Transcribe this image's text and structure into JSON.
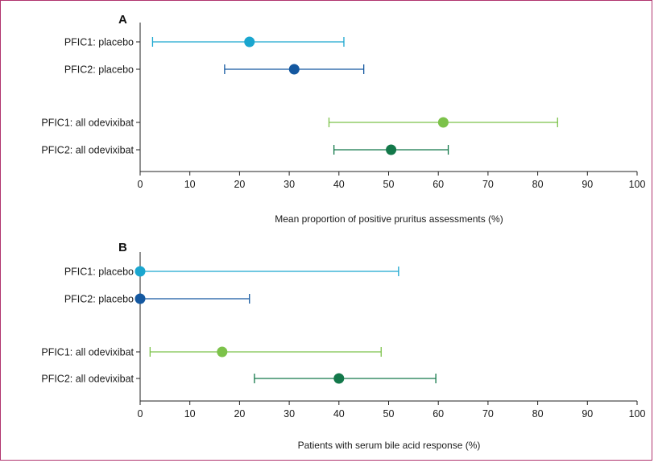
{
  "chart_data": [
    {
      "type": "scatter",
      "panel": "A",
      "title": "",
      "xlabel": "Mean proportion of positive pruritus assessments (%)",
      "ylabel": "",
      "xlim": [
        0,
        100
      ],
      "xticks": [
        0,
        10,
        20,
        30,
        40,
        50,
        60,
        70,
        80,
        90,
        100
      ],
      "grid": false,
      "categories": [
        "PFIC1: placebo",
        "PFIC2: placebo",
        "PFIC1: all odevixibat",
        "PFIC2: all odevixibat"
      ],
      "points": [
        {
          "label": "PFIC1: placebo",
          "value": 22,
          "ci_low": 2.5,
          "ci_high": 41,
          "color": "#1aa6cf"
        },
        {
          "label": "PFIC2: placebo",
          "value": 31,
          "ci_low": 17,
          "ci_high": 45,
          "color": "#1458a0"
        },
        {
          "label": "PFIC1: all odevixibat",
          "value": 61,
          "ci_low": 38,
          "ci_high": 84,
          "color": "#7cc24a"
        },
        {
          "label": "PFIC2: all odevixibat",
          "value": 50.5,
          "ci_low": 39,
          "ci_high": 62,
          "color": "#13784a"
        }
      ]
    },
    {
      "type": "scatter",
      "panel": "B",
      "title": "",
      "xlabel": "Patients with serum bile acid response (%)",
      "ylabel": "",
      "xlim": [
        0,
        100
      ],
      "xticks": [
        0,
        10,
        20,
        30,
        40,
        50,
        60,
        70,
        80,
        90,
        100
      ],
      "grid": false,
      "categories": [
        "PFIC1: placebo",
        "PFIC2: placebo",
        "PFIC1: all odevixibat",
        "PFIC2: all odevixibat"
      ],
      "points": [
        {
          "label": "PFIC1: placebo",
          "value": 0,
          "ci_low": 0,
          "ci_high": 52,
          "color": "#1aa6cf"
        },
        {
          "label": "PFIC2: placebo",
          "value": 0,
          "ci_low": 0,
          "ci_high": 22,
          "color": "#1458a0"
        },
        {
          "label": "PFIC1: all odevixibat",
          "value": 16.5,
          "ci_low": 2,
          "ci_high": 48.5,
          "color": "#7cc24a"
        },
        {
          "label": "PFIC2: all odevixibat",
          "value": 40,
          "ci_low": 23,
          "ci_high": 59.5,
          "color": "#13784a"
        }
      ]
    }
  ]
}
